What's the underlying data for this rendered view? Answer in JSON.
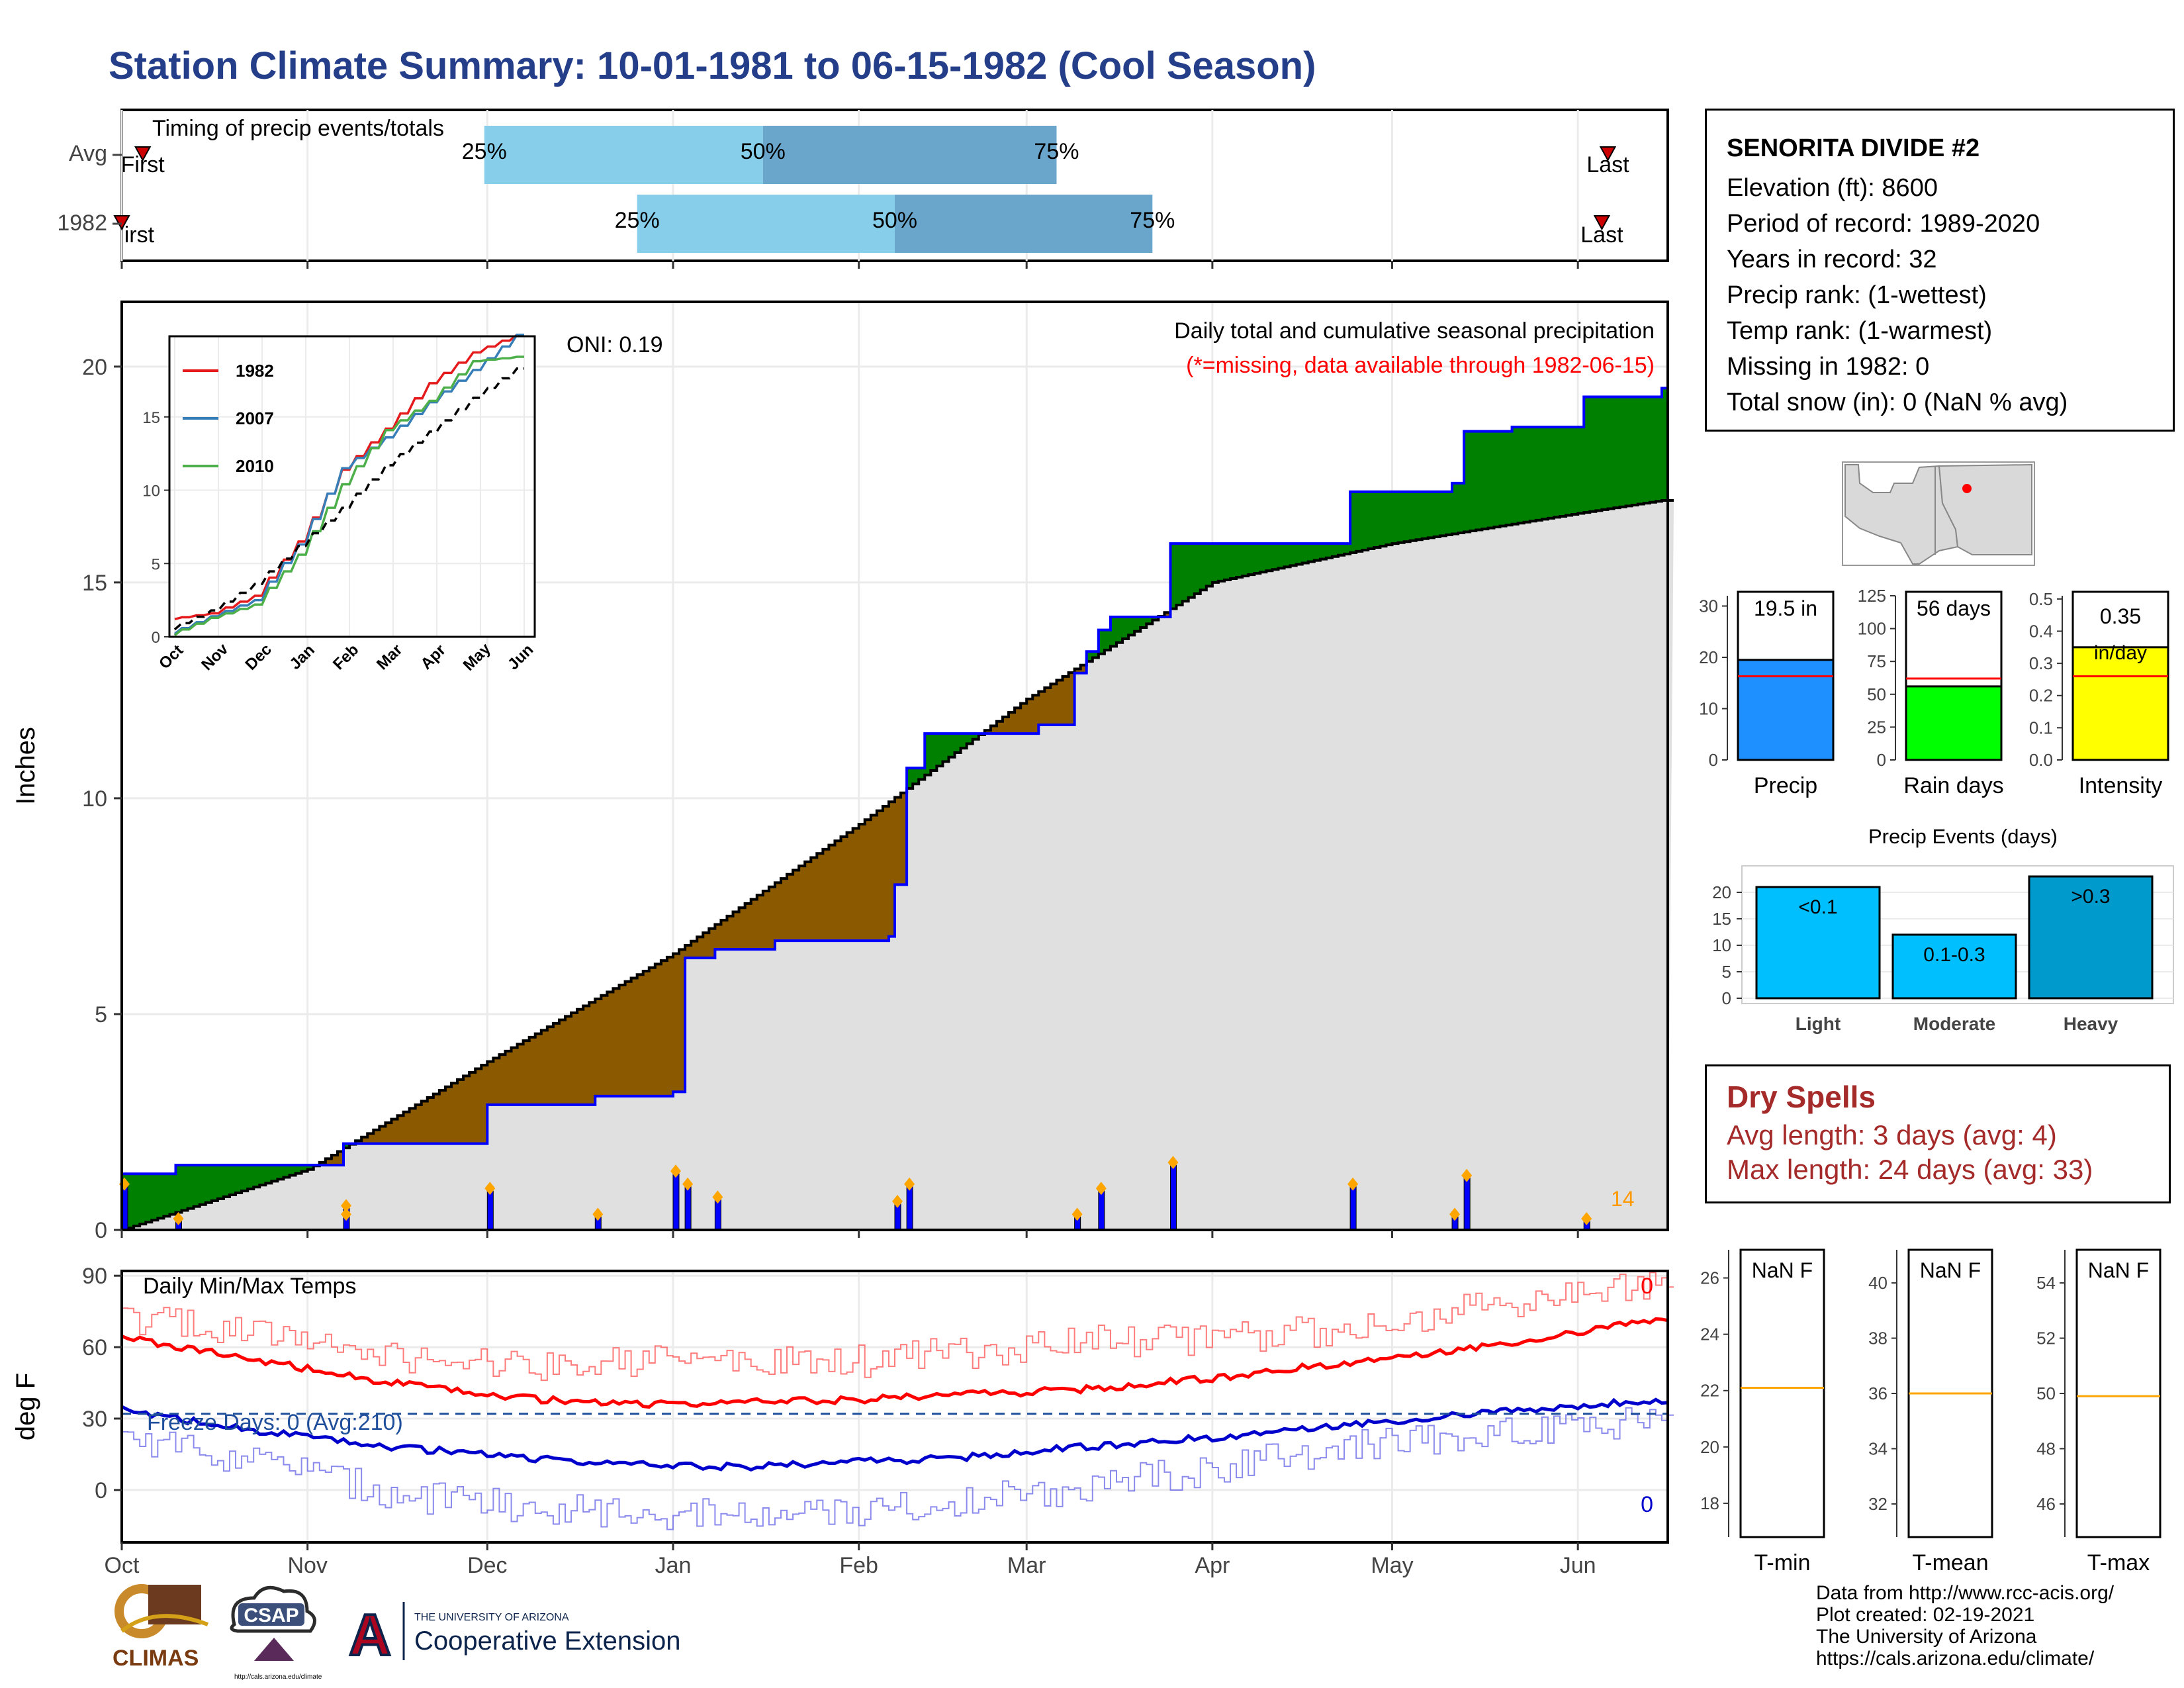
{
  "title": "Station Climate Summary: 10-01-1981 to 06-15-1982 (Cool Season)",
  "colors": {
    "title": "#253e8a",
    "above_normal": "#008000",
    "below_normal": "#8b5a00",
    "normal_fill": "#e0e0e0",
    "quartile_light": "#87ceeb",
    "quartile_dark": "#6aa6cc",
    "daily_bar": "#0000ff",
    "tmax": "#ff0000",
    "tmin": "#0000cd",
    "dry": "#a52a2a"
  },
  "months": [
    "Oct",
    "Nov",
    "Dec",
    "Jan",
    "Feb",
    "Mar",
    "Apr",
    "May",
    "Jun"
  ],
  "timing": {
    "label": "Timing of precip events/totals",
    "rows": [
      {
        "name": "Avg",
        "first": "First",
        "last": "Last",
        "q25": "25%",
        "q50": "50%",
        "q75": "75%"
      },
      {
        "name": "1982",
        "first": "First",
        "last": "Last",
        "q25": "25%",
        "q50": "50%",
        "q75": "75%"
      }
    ]
  },
  "main": {
    "ylabel": "Inches",
    "yticks": [
      "0",
      "5",
      "10",
      "15",
      "20"
    ],
    "oni": "ONI: 0.19",
    "heading": "Daily total and cumulative seasonal precipitation",
    "note": "(*=missing, data available through 1982-06-15)",
    "corner_count": "14"
  },
  "chart_data": [
    {
      "type": "area",
      "title": "Daily total and cumulative seasonal precipitation",
      "ylabel": "Inches",
      "ylim": [
        0,
        21.5
      ],
      "observed_cumulative": {
        "x": [
          "Oct 1",
          "Oct 1",
          "Oct 10",
          "Nov 7",
          "Nov 7",
          "Dec 1",
          "Dec 1",
          "Dec 19",
          "Dec 31",
          "Jan 1",
          "Jan 3",
          "Jan 8",
          "Jan 18",
          "Feb 6",
          "Feb 7",
          "Feb 9",
          "Feb 12",
          "Feb 20",
          "Mar 3",
          "Mar 9",
          "Mar 11",
          "Mar 13",
          "Mar 15",
          "Mar 24",
          "Mar 25",
          "Apr 20",
          "Apr 24",
          "May 11",
          "May 13",
          "May 21",
          "Jun 2",
          "Jun 15"
        ],
        "values": [
          0.3,
          1.3,
          1.5,
          1.5,
          2.0,
          2.9,
          2.9,
          3.1,
          3.1,
          3.2,
          6.3,
          6.5,
          6.7,
          6.8,
          8.0,
          10.7,
          11.5,
          11.5,
          11.7,
          12.9,
          13.4,
          13.9,
          14.2,
          14.2,
          15.9,
          15.9,
          17.1,
          17.3,
          18.5,
          18.6,
          19.3,
          19.5
        ]
      },
      "normal_cumulative": {
        "x": [
          "Oct 1",
          "Nov 1",
          "Dec 1",
          "Jan 1",
          "Feb 1",
          "Mar 1",
          "Apr 1",
          "May 1",
          "Jun 1",
          "Jun 15"
        ],
        "values": [
          0.0,
          1.4,
          3.9,
          6.4,
          9.4,
          12.3,
          15.0,
          15.9,
          16.6,
          16.9
        ]
      },
      "daily_bars": {
        "x": [
          "Oct 1",
          "Oct 10",
          "Nov 7",
          "Nov 7",
          "Dec 1",
          "Dec 19",
          "Jan 1",
          "Jan 3",
          "Jan 8",
          "Feb 7",
          "Feb 9",
          "Mar 9",
          "Mar 13",
          "Mar 25",
          "Apr 24",
          "May 11",
          "May 13",
          "Jun 2"
        ],
        "values": [
          1.0,
          0.2,
          0.5,
          0.3,
          0.9,
          0.3,
          1.3,
          1.0,
          0.7,
          0.6,
          1.0,
          0.3,
          0.9,
          1.5,
          1.0,
          0.3,
          1.2,
          0.2
        ]
      }
    },
    {
      "type": "line",
      "title": "",
      "series": [
        {
          "name": "1982",
          "color": "#e41a1c",
          "x": [
            "Oct",
            "Nov",
            "Dec",
            "Jan",
            "Feb",
            "Mar",
            "Apr",
            "May",
            "Jun"
          ],
          "values": [
            1.2,
            1.6,
            2.8,
            6.5,
            11.4,
            14.2,
            17.3,
            19.4,
            20.6
          ]
        },
        {
          "name": "2007",
          "color": "#377eb8",
          "x": [
            "Oct",
            "Nov",
            "Dec",
            "Jan",
            "Feb",
            "Mar",
            "Apr",
            "May",
            "Jun"
          ],
          "values": [
            0.2,
            1.4,
            2.5,
            6.3,
            11.5,
            13.6,
            16.0,
            18.2,
            20.6
          ]
        },
        {
          "name": "2010",
          "color": "#4daf4a",
          "x": [
            "Oct",
            "Nov",
            "Dec",
            "Jan",
            "Feb",
            "Mar",
            "Apr",
            "May",
            "Jun"
          ],
          "values": [
            0.1,
            1.3,
            2.2,
            5.6,
            10.4,
            14.1,
            16.1,
            18.8,
            19.1
          ]
        },
        {
          "name": "",
          "color": "#000000",
          "dashed": true,
          "x": [
            "Oct",
            "Nov",
            "Dec",
            "Jan",
            "Feb",
            "Mar",
            "Apr",
            "May",
            "Jun"
          ],
          "values": [
            0.5,
            1.8,
            3.6,
            6.2,
            8.8,
            11.7,
            14.0,
            16.3,
            18.3
          ]
        }
      ],
      "yticks": [
        "0",
        "5",
        "10",
        "15"
      ],
      "xticks": [
        "Oct",
        "Nov",
        "Dec",
        "Jan",
        "Feb",
        "Mar",
        "Apr",
        "May",
        "Jun"
      ],
      "ylim": [
        0,
        20.5
      ]
    },
    {
      "type": "bar",
      "categories": [
        "Precip"
      ],
      "values": [
        19.5
      ],
      "normal": [
        16.3
      ],
      "ylim": [
        0,
        32
      ],
      "label": "19.5 in",
      "yticks": [
        "0",
        "10",
        "20",
        "30"
      ],
      "color": "#1e90ff"
    },
    {
      "type": "bar",
      "categories": [
        "Rain days"
      ],
      "values": [
        56
      ],
      "normal": [
        62
      ],
      "ylim": [
        0,
        125
      ],
      "label": "56 days",
      "yticks": [
        "0",
        "25",
        "50",
        "75",
        "100",
        "125"
      ],
      "color": "#00ff00"
    },
    {
      "type": "bar",
      "categories": [
        "Intensity"
      ],
      "values": [
        0.35
      ],
      "normal": [
        0.26
      ],
      "ylim": [
        0,
        0.51
      ],
      "label": "0.35",
      "unit": "in/day",
      "yticks": [
        "0.0",
        "0.1",
        "0.2",
        "0.3",
        "0.4",
        "0.5"
      ],
      "color": "#ffff00"
    },
    {
      "type": "bar",
      "title": "Precip Events (days)",
      "categories": [
        "Light",
        "Moderate",
        "Heavy"
      ],
      "values": [
        21,
        12,
        23
      ],
      "labels": [
        "<0.1",
        "0.1-0.3",
        ">0.3"
      ],
      "colors": [
        "#00bfff",
        "#00bfff",
        "#009acd"
      ],
      "yticks": [
        "0",
        "5",
        "10",
        "15",
        "20"
      ],
      "ylim": [
        0,
        24
      ]
    },
    {
      "type": "line",
      "title": "Daily Min/Max Temps",
      "ylabel": "deg F",
      "ylim": [
        -22,
        92
      ],
      "yticks": [
        "0",
        "30",
        "60",
        "90"
      ],
      "freeze_threshold": 32,
      "series": [
        {
          "name": "",
          "x": [
            "Oct 1",
            "Oct 15",
            "Nov 1",
            "Nov 15",
            "Dec 1",
            "Dec 15",
            "Jan 1",
            "Jan 15",
            "Feb 1",
            "Feb 15",
            "Mar 1",
            "Mar 15",
            "Apr 1",
            "Apr 15",
            "May 1",
            "May 15",
            "Jun 1",
            "Jun 15"
          ],
          "values": [
            64,
            58,
            51,
            45,
            40,
            37,
            36,
            37,
            38,
            40,
            41,
            43,
            47,
            51,
            56,
            60,
            66,
            72
          ]
        },
        {
          "name": "",
          "x": [
            "Oct 1",
            "Oct 15",
            "Nov 1",
            "Nov 15",
            "Dec 1",
            "Dec 15",
            "Jan 1",
            "Jan 15",
            "Feb 1",
            "Feb 15",
            "Mar 1",
            "Mar 15",
            "Apr 1",
            "Apr 15",
            "May 1",
            "May 15",
            "Jun 1",
            "Jun 15"
          ],
          "values": [
            34,
            28,
            22,
            18,
            15,
            12,
            10,
            10,
            12,
            13,
            16,
            19,
            22,
            26,
            29,
            32,
            35,
            38
          ]
        },
        {
          "name": "",
          "x": [
            "Oct 1",
            "Oct 15",
            "Nov 1",
            "Nov 15",
            "Dec 1",
            "Dec 15",
            "Jan 1",
            "Jan 15",
            "Feb 1",
            "Feb 15",
            "Mar 1",
            "Mar 15",
            "Apr 1",
            "Apr 15",
            "May 1",
            "May 15",
            "Jun 1",
            "Jun 15"
          ],
          "values": [
            72,
            68,
            63,
            57,
            52,
            53,
            55,
            53,
            54,
            57,
            59,
            63,
            63,
            66,
            71,
            76,
            82,
            88
          ]
        },
        {
          "name": "",
          "x": [
            "Oct 1",
            "Oct 15",
            "Nov 1",
            "Nov 15",
            "Dec 1",
            "Dec 15",
            "Jan 1",
            "Jan 15",
            "Feb 1",
            "Feb 15",
            "Mar 1",
            "Mar 15",
            "Apr 1",
            "Apr 15",
            "May 1",
            "May 15",
            "Jun 1",
            "Jun 15"
          ],
          "values": [
            23,
            16,
            8,
            -2,
            -6,
            -8,
            -10,
            -12,
            -8,
            -6,
            -2,
            3,
            9,
            15,
            20,
            24,
            26,
            30
          ]
        }
      ]
    },
    {
      "type": "bar",
      "categories": [
        "T-min",
        "T-mean",
        "T-max"
      ],
      "values": [
        "NaN F",
        "NaN F",
        "NaN F"
      ],
      "normals": [
        22.1,
        36.0,
        49.9
      ],
      "panels": [
        {
          "label": "T-min",
          "value": "NaN F",
          "ylim": [
            16.8,
            27
          ],
          "yticks": [
            "18",
            "20",
            "22",
            "24",
            "26"
          ],
          "normal": 22.1
        },
        {
          "label": "T-mean",
          "value": "NaN F",
          "ylim": [
            30.8,
            41.2
          ],
          "yticks": [
            "32",
            "34",
            "36",
            "38",
            "40"
          ],
          "normal": 36.0
        },
        {
          "label": "T-max",
          "value": "NaN F",
          "ylim": [
            44.8,
            55.2
          ],
          "yticks": [
            "46",
            "48",
            "50",
            "52",
            "54"
          ],
          "normal": 49.9
        }
      ]
    }
  ],
  "station": {
    "name": "SENORITA DIVIDE #2",
    "lines": [
      "Elevation (ft): 8600",
      "Period of record: 1989-2020",
      "Years in record: 32",
      "Precip rank:  (1-wettest)",
      "Temp rank:  (1-warmest)",
      "Missing in 1982: 0",
      "Total snow (in): 0 (NaN % avg)"
    ]
  },
  "temps": {
    "title": "Daily Min/Max Temps",
    "ylabel": "deg F",
    "freeze": "Freeze Days: 0 (Avg:210)",
    "top_count": "0",
    "bottom_count": "0"
  },
  "dry_spells": {
    "title": "Dry Spells",
    "avg": "Avg length: 3 days (avg: 4)",
    "max": "Max length: 24 days (avg: 33)"
  },
  "credits": [
    "Data from http://www.rcc-acis.org/",
    "Plot created: 02-19-2021",
    "The University of Arizona",
    "https://cals.arizona.edu/climate/"
  ],
  "logos": {
    "climas": "CLIMAS",
    "csap": "CSAP",
    "csap_url": "http://cals.arizona.edu/climate",
    "ua_top": "THE UNIVERSITY OF ARIZONA",
    "ua_bottom": "Cooperative Extension",
    "ua_letter": "A"
  }
}
